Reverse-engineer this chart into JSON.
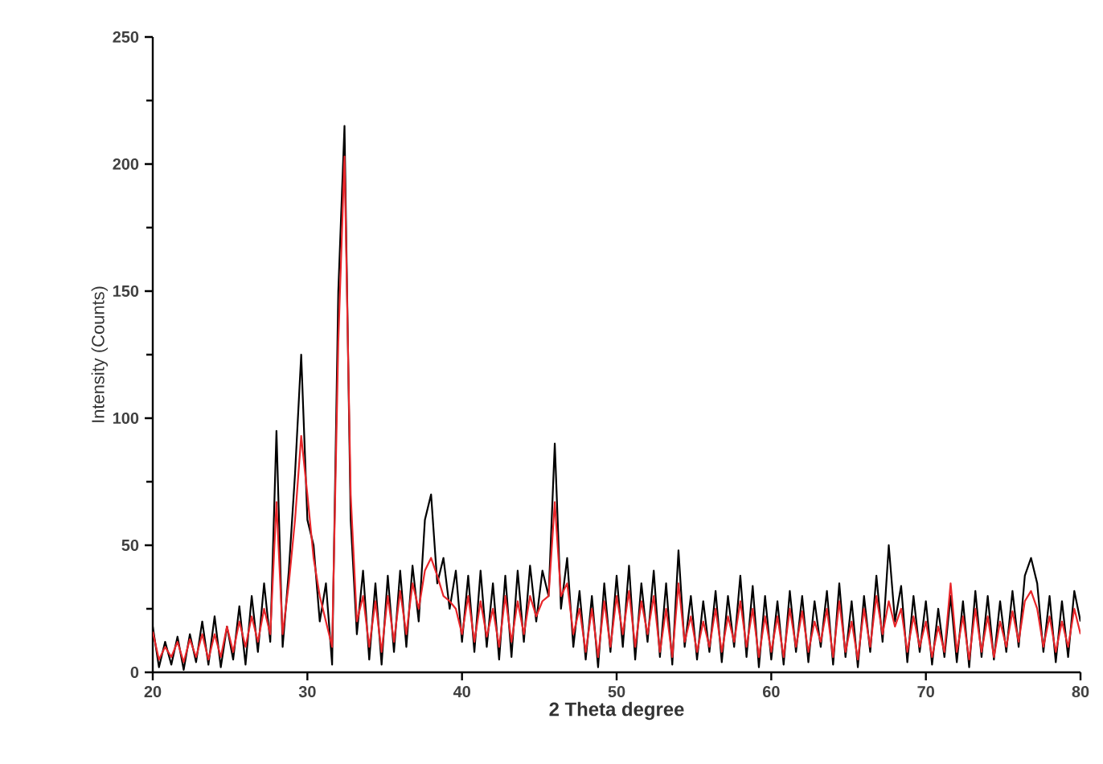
{
  "chart_data": {
    "type": "line",
    "xlabel": "2 Theta degree",
    "ylabel": "Intensity (Counts)",
    "xlim": [
      20,
      80
    ],
    "ylim": [
      0,
      250
    ],
    "xticks": [
      20,
      30,
      40,
      50,
      60,
      70,
      80
    ],
    "yticks": [
      0,
      50,
      100,
      150,
      200,
      250
    ],
    "x": [
      20.0,
      20.4,
      20.8,
      21.2,
      21.6,
      22.0,
      22.4,
      22.8,
      23.2,
      23.6,
      24.0,
      24.4,
      24.8,
      25.2,
      25.6,
      26.0,
      26.4,
      26.8,
      27.2,
      27.6,
      28.0,
      28.4,
      28.8,
      29.2,
      29.6,
      30.0,
      30.4,
      30.8,
      31.2,
      31.6,
      32.0,
      32.4,
      32.8,
      33.2,
      33.6,
      34.0,
      34.4,
      34.8,
      35.2,
      35.6,
      36.0,
      36.4,
      36.8,
      37.2,
      37.6,
      38.0,
      38.4,
      38.8,
      39.2,
      39.6,
      40.0,
      40.4,
      40.8,
      41.2,
      41.6,
      42.0,
      42.4,
      42.8,
      43.2,
      43.6,
      44.0,
      44.4,
      44.8,
      45.2,
      45.6,
      46.0,
      46.4,
      46.8,
      47.2,
      47.6,
      48.0,
      48.4,
      48.8,
      49.2,
      49.6,
      50.0,
      50.4,
      50.8,
      51.2,
      51.6,
      52.0,
      52.4,
      52.8,
      53.2,
      53.6,
      54.0,
      54.4,
      54.8,
      55.2,
      55.6,
      56.0,
      56.4,
      56.8,
      57.2,
      57.6,
      58.0,
      58.4,
      58.8,
      59.2,
      59.6,
      60.0,
      60.4,
      60.8,
      61.2,
      61.6,
      62.0,
      62.4,
      62.8,
      63.2,
      63.6,
      64.0,
      64.4,
      64.8,
      65.2,
      65.6,
      66.0,
      66.4,
      66.8,
      67.2,
      67.6,
      68.0,
      68.4,
      68.8,
      69.2,
      69.6,
      70.0,
      70.4,
      70.8,
      71.2,
      71.6,
      72.0,
      72.4,
      72.8,
      73.2,
      73.6,
      74.0,
      74.4,
      74.8,
      75.2,
      75.6,
      76.0,
      76.4,
      76.8,
      77.2,
      77.6,
      78.0,
      78.4,
      78.8,
      79.2,
      79.6,
      80.0
    ],
    "marker": "none",
    "line_style": "solid",
    "grid": false,
    "series": [
      {
        "color": "#000000",
        "values": [
          18,
          2,
          12,
          3,
          14,
          1,
          15,
          4,
          20,
          3,
          22,
          2,
          18,
          5,
          26,
          3,
          30,
          8,
          35,
          12,
          95,
          10,
          40,
          78,
          125,
          60,
          50,
          20,
          35,
          3,
          150,
          215,
          60,
          15,
          40,
          5,
          35,
          3,
          38,
          8,
          40,
          10,
          42,
          20,
          60,
          70,
          35,
          45,
          25,
          40,
          12,
          38,
          8,
          40,
          10,
          35,
          5,
          38,
          6,
          40,
          12,
          42,
          20,
          40,
          30,
          90,
          25,
          45,
          10,
          32,
          5,
          30,
          2,
          35,
          8,
          38,
          10,
          42,
          5,
          35,
          12,
          40,
          6,
          35,
          3,
          48,
          10,
          30,
          5,
          28,
          8,
          32,
          4,
          30,
          10,
          38,
          6,
          34,
          2,
          30,
          5,
          28,
          3,
          32,
          8,
          30,
          4,
          28,
          10,
          32,
          3,
          35,
          6,
          28,
          2,
          30,
          8,
          38,
          12,
          50,
          20,
          34,
          4,
          30,
          8,
          28,
          3,
          25,
          6,
          30,
          4,
          28,
          2,
          32,
          6,
          30,
          5,
          28,
          8,
          32,
          10,
          38,
          45,
          35,
          8,
          30,
          4,
          28,
          6,
          32,
          20
        ]
      },
      {
        "color": "#e8262a",
        "values": [
          16,
          5,
          10,
          6,
          12,
          4,
          13,
          6,
          15,
          5,
          15,
          6,
          18,
          8,
          20,
          10,
          22,
          12,
          25,
          15,
          67,
          15,
          35,
          60,
          93,
          70,
          45,
          30,
          20,
          10,
          130,
          203,
          70,
          20,
          30,
          10,
          28,
          8,
          30,
          12,
          32,
          15,
          35,
          25,
          40,
          45,
          38,
          30,
          28,
          25,
          15,
          30,
          12,
          28,
          14,
          25,
          10,
          30,
          12,
          28,
          15,
          30,
          22,
          28,
          30,
          67,
          30,
          35,
          15,
          25,
          8,
          25,
          6,
          28,
          10,
          30,
          15,
          32,
          10,
          28,
          15,
          30,
          8,
          25,
          6,
          35,
          12,
          22,
          8,
          20,
          10,
          25,
          8,
          22,
          12,
          28,
          10,
          25,
          6,
          22,
          8,
          22,
          6,
          25,
          10,
          24,
          8,
          20,
          12,
          25,
          6,
          28,
          8,
          20,
          5,
          25,
          10,
          30,
          15,
          28,
          18,
          25,
          8,
          22,
          10,
          20,
          6,
          18,
          8,
          35,
          8,
          22,
          5,
          25,
          8,
          22,
          6,
          20,
          10,
          24,
          12,
          28,
          32,
          25,
          10,
          22,
          8,
          20,
          10,
          25,
          15
        ]
      }
    ]
  }
}
